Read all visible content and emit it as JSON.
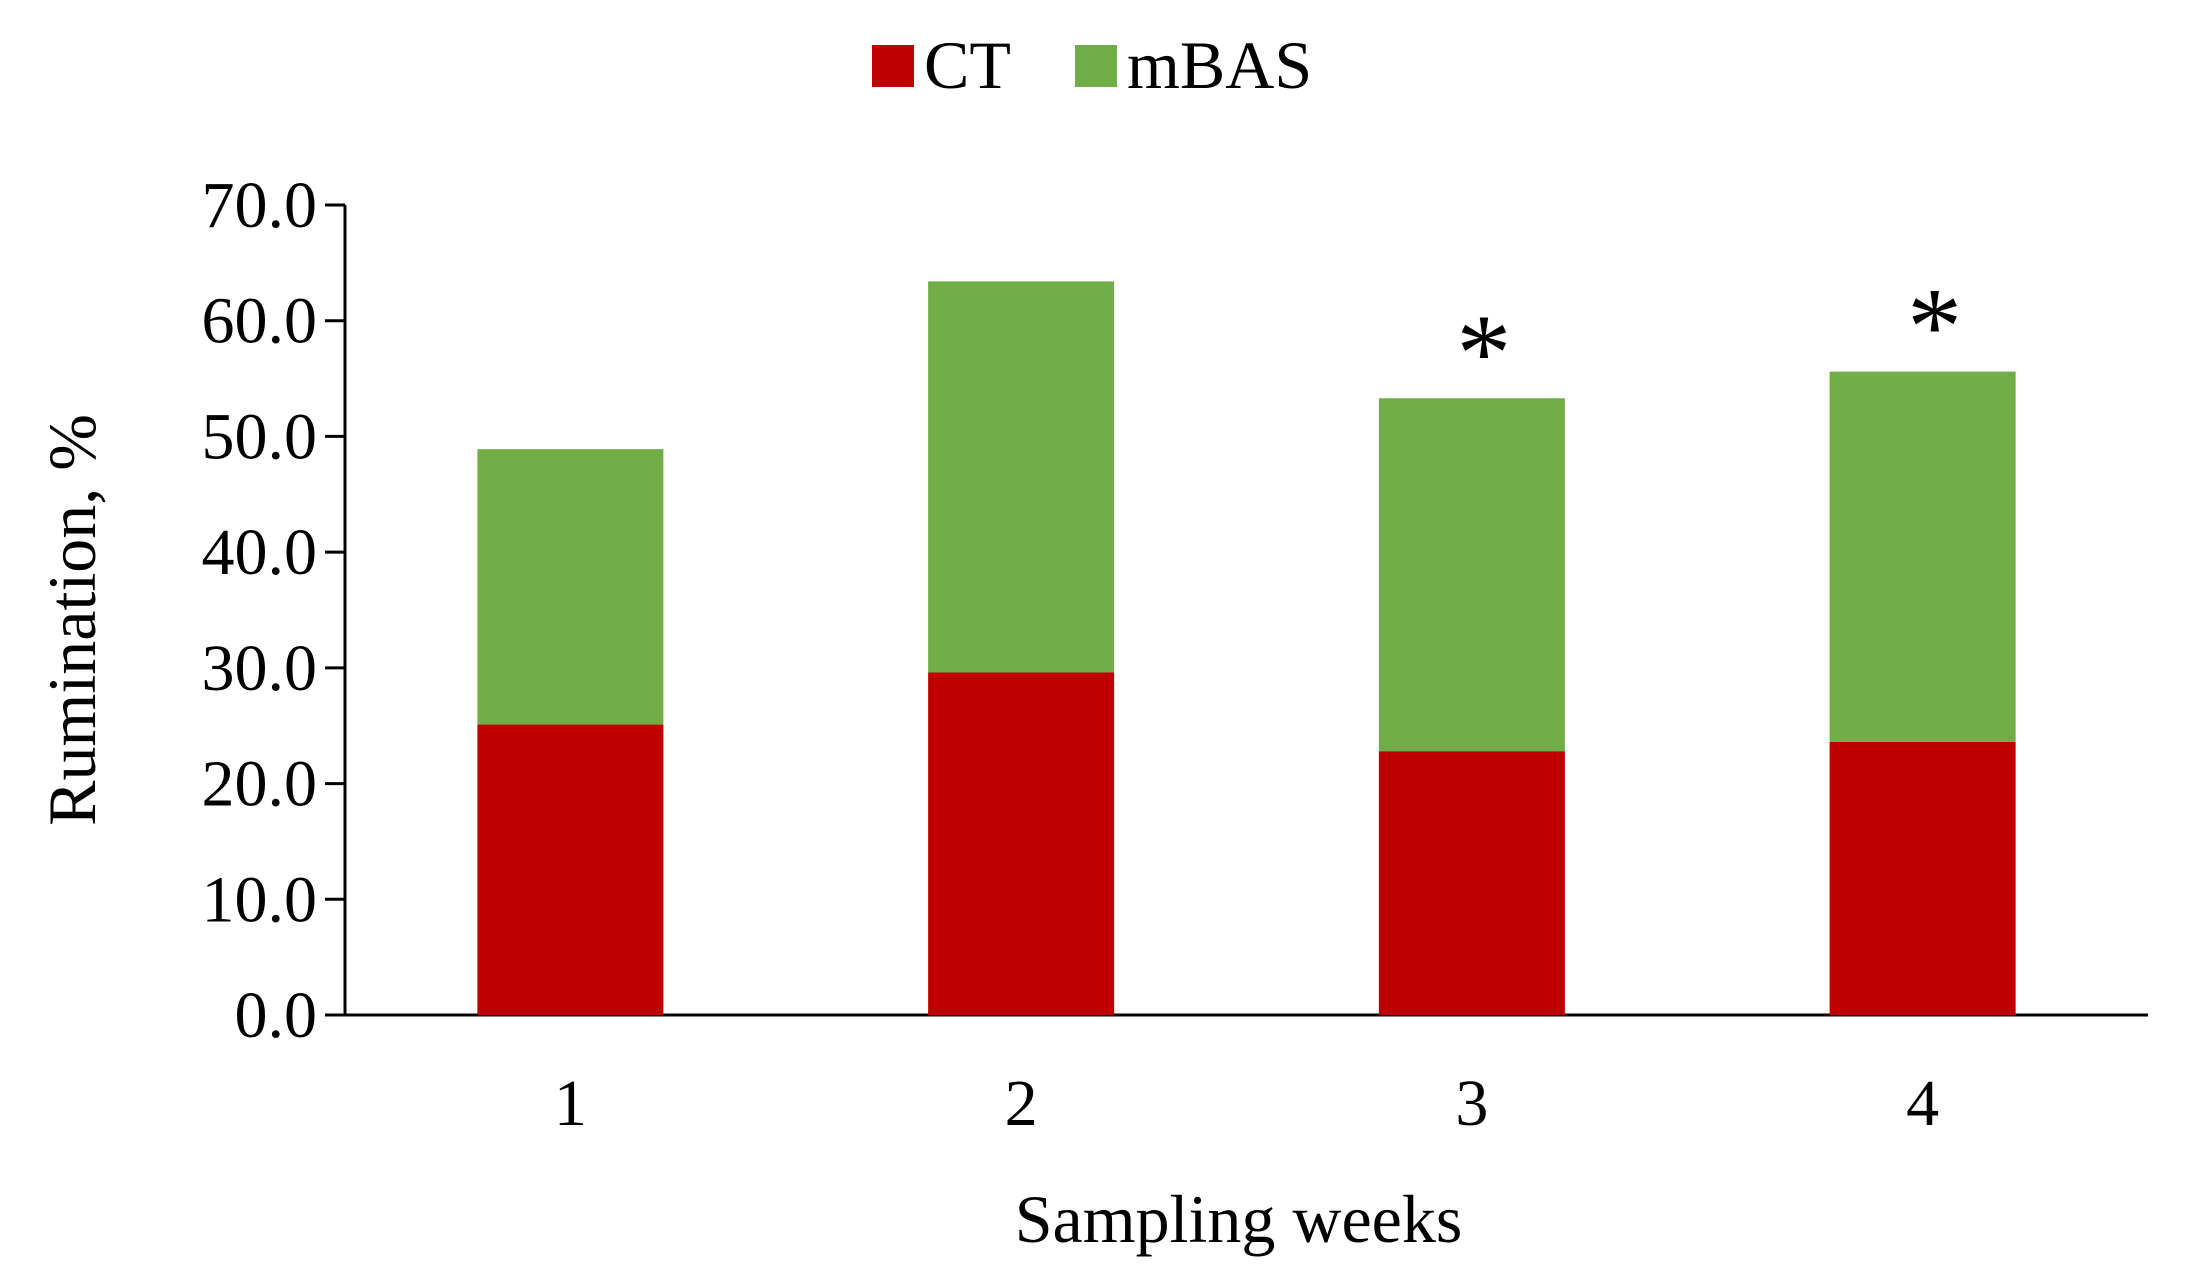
{
  "chart_data": {
    "type": "bar",
    "stacked": true,
    "title": "",
    "xlabel": "Sampling weeks",
    "ylabel": "Rumination, %",
    "categories": [
      "1",
      "2",
      "3",
      "4"
    ],
    "ylim": [
      0,
      70
    ],
    "yticks": [
      0,
      10,
      20,
      30,
      40,
      50,
      60,
      70
    ],
    "ytick_labels": [
      "0.0",
      "10.0",
      "20.0",
      "30.0",
      "40.0",
      "50.0",
      "60.0",
      "70.0"
    ],
    "grid": false,
    "legend_position": "top-center",
    "series": [
      {
        "name": "CT",
        "color": "#C00000",
        "values": [
          25.1,
          29.6,
          22.8,
          23.6
        ]
      },
      {
        "name": "mBAS",
        "color": "#70AD47",
        "values": [
          23.8,
          33.8,
          30.5,
          32.0
        ]
      }
    ],
    "annotations": [
      {
        "category": "3",
        "text": "*"
      },
      {
        "category": "4",
        "text": "*"
      }
    ]
  }
}
